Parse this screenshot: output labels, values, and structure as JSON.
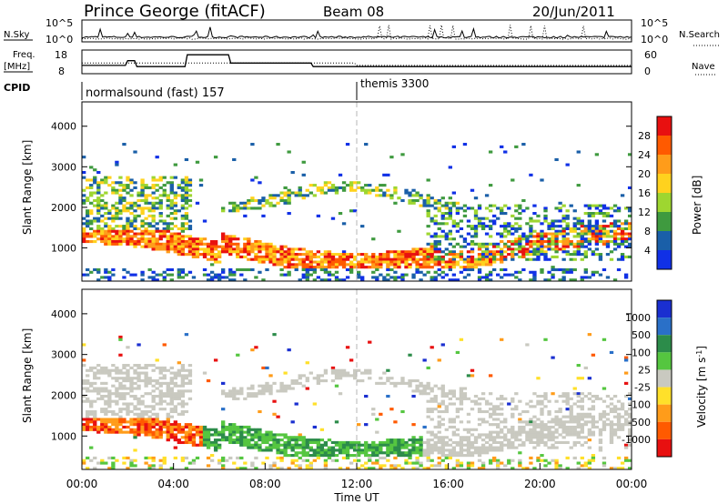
{
  "header": {
    "title": "Prince George (fitACF)",
    "beam": "Beam 08",
    "date": "20/Jun/2011"
  },
  "nsky_panel": {
    "left_label": "N.Sky",
    "right_label": "N.Search",
    "left_ticks": [
      "10^5",
      "10^0"
    ],
    "right_ticks": [
      "10^5",
      "10^0"
    ]
  },
  "freq_panel": {
    "left_label_1": "Freq.",
    "left_label_2": "[MHz]",
    "right_label": "Nave",
    "left_ticks": [
      "18",
      "8"
    ],
    "right_ticks": [
      "60",
      "0"
    ]
  },
  "cpid_panel": {
    "label": "CPID",
    "modes": [
      {
        "name": "normalsound (fast) 157"
      },
      {
        "name": "themis 3300"
      }
    ]
  },
  "chart_data": [
    {
      "type": "heatmap",
      "title": "Power",
      "ylabel": "Slant Range [km]",
      "ylim": [
        180,
        4600
      ],
      "yticks": [
        1000,
        2000,
        3000,
        4000
      ],
      "xlim": [
        "00:00",
        "24:00"
      ],
      "colorbar": {
        "label": "Power [dB]",
        "ticks": [
          "28",
          "24",
          "20",
          "16",
          "12",
          "8",
          "4"
        ],
        "colors": [
          "#e81010",
          "#ff5a00",
          "#ff9c1a",
          "#ffd21e",
          "#9ed630",
          "#3f9a3f",
          "#1a5fa8",
          "#1030e6"
        ]
      }
    },
    {
      "type": "heatmap",
      "title": "Velocity",
      "ylabel": "Slant Range [km]",
      "ylim": [
        180,
        4600
      ],
      "yticks": [
        1000,
        2000,
        3000,
        4000
      ],
      "xlim": [
        "00:00",
        "24:00"
      ],
      "xlabel": "Time UT",
      "xticks": [
        "00:00",
        "04:00",
        "08:00",
        "12:00",
        "16:00",
        "20:00",
        "00:00"
      ],
      "colorbar": {
        "label": "Velocity [m s^-1]",
        "ticks": [
          "1000",
          "500",
          "100",
          "25",
          "-25",
          "-100",
          "-500",
          "-1000"
        ],
        "colors": [
          "#1a2fd0",
          "#2a70c8",
          "#2c8c4a",
          "#55c640",
          "#c9c9c0",
          "#ffe02a",
          "#ff9c1a",
          "#ff5a00",
          "#e81010"
        ]
      }
    }
  ],
  "palette": {
    "ground_scatter": "#c9c9c0"
  }
}
